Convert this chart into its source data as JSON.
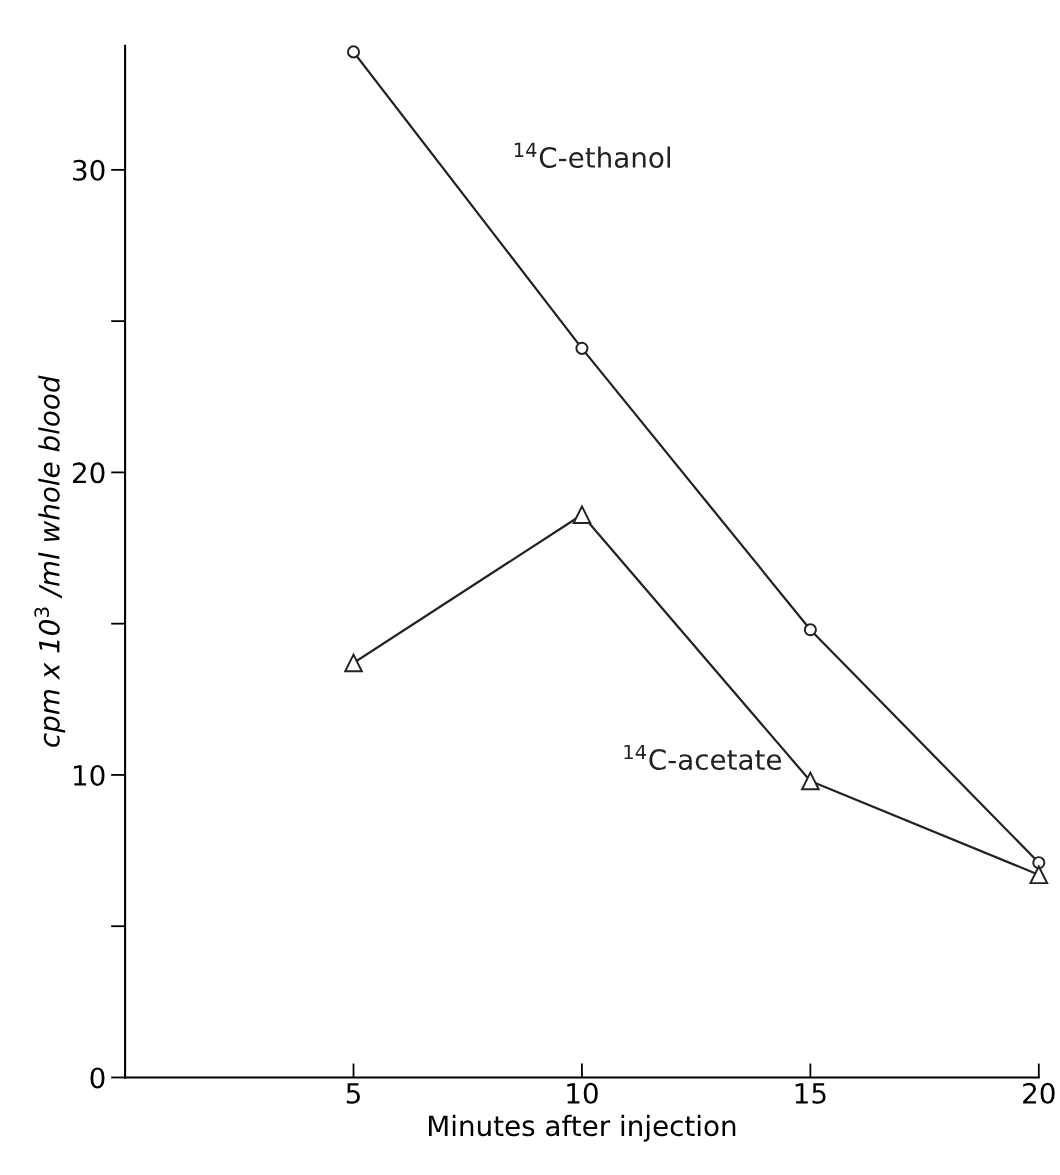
{
  "chart_data": {
    "type": "line",
    "xlabel": "Minutes after injection",
    "ylabel": "cpm x 10$^{3}$ /ml whole blood",
    "x": [
      5,
      10,
      15,
      20
    ],
    "series": [
      {
        "name": "$^{14}$C-ethanol",
        "color": "#222222",
        "marker": "circle",
        "values": [
          33.9,
          24.1,
          14.8,
          7.1
        ]
      },
      {
        "name": "$^{14}$C-acetate",
        "color": "#222222",
        "marker": "triangle",
        "values": [
          13.7,
          18.6,
          9.8,
          6.7
        ]
      }
    ],
    "xlim": [
      0,
      20
    ],
    "xticks": [
      5,
      10,
      15,
      20
    ],
    "ylim": [
      0,
      34.1
    ],
    "yticks": [
      0,
      {
        "value": 5,
        "label": null
      },
      10,
      {
        "value": 15,
        "label": null
      },
      20,
      {
        "value": 25,
        "label": null
      },
      30
    ],
    "grid": false,
    "legend": false,
    "line_style": "solid"
  }
}
